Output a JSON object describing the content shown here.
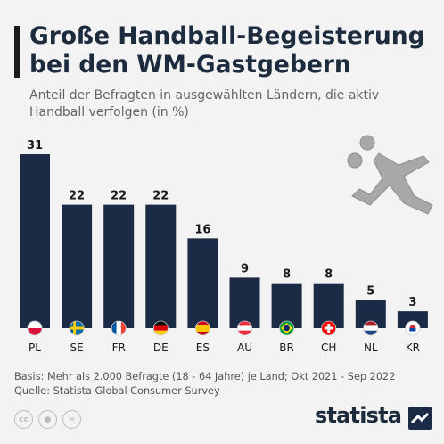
{
  "header": {
    "title": "Große Handball-Begeisterung bei den WM-Gastgebern",
    "subtitle": "Anteil der Befragten in ausgewählten Ländern, die aktiv Handball verfolgen (in %)"
  },
  "chart_data": {
    "type": "bar",
    "title": "Große Handball-Begeisterung bei den WM-Gastgebern",
    "subtitle": "Anteil der Befragten in ausgewählten Ländern, die aktiv Handball verfolgen (in %)",
    "categories": [
      "PL",
      "SE",
      "FR",
      "DE",
      "ES",
      "AU",
      "BR",
      "CH",
      "NL",
      "KR"
    ],
    "values": [
      31,
      22,
      22,
      22,
      16,
      9,
      8,
      8,
      5,
      3
    ],
    "ylim": [
      0,
      31
    ],
    "grid": false,
    "legend": "none",
    "bar_color": "#1c2b45"
  },
  "footer": {
    "basis": "Basis: Mehr als 2.000 Befragte (18 - 64 Jahre) je Land; Okt 2021 - Sep 2022",
    "source": "Quelle: Statista Global Consumer Survey",
    "license_icons": [
      "cc-icon",
      "person-icon",
      "equals-icon"
    ],
    "brand": "statista"
  },
  "icons": {
    "illustration": "handball-player-icon"
  }
}
